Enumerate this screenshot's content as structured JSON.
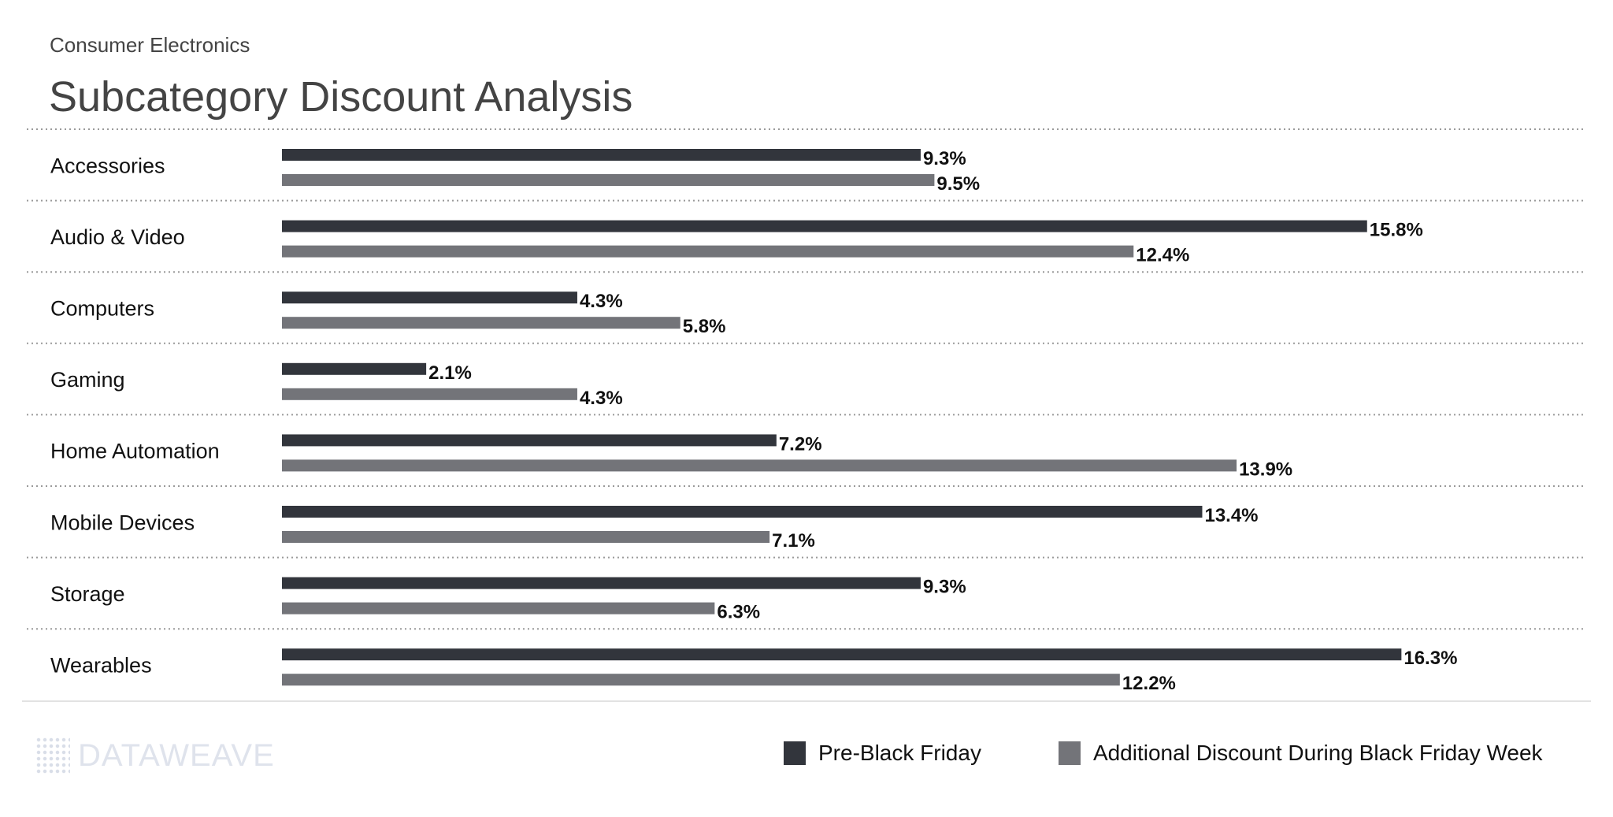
{
  "chart_data": {
    "type": "bar",
    "orientation": "horizontal",
    "subtitle": "Consumer Electronics",
    "title": "Subcategory Discount Analysis",
    "categories": [
      "Accessories",
      "Audio & Video",
      "Computers",
      "Gaming",
      "Home Automation",
      "Mobile Devices",
      "Storage",
      "Wearables"
    ],
    "series": [
      {
        "name": "Pre-Black Friday",
        "color": "#32353c",
        "values": [
          9.3,
          15.8,
          4.3,
          2.1,
          7.2,
          13.4,
          9.3,
          16.3
        ]
      },
      {
        "name": "Additional Discount During Black Friday Week",
        "color": "#737479",
        "values": [
          9.5,
          12.4,
          5.8,
          4.3,
          13.9,
          7.1,
          6.3,
          12.2
        ]
      }
    ],
    "value_format": "%",
    "xlim": [
      0,
      16.3
    ],
    "grid": false,
    "legend": "bottom-right"
  },
  "branding": {
    "logo_text": "DATAWEAVE"
  }
}
